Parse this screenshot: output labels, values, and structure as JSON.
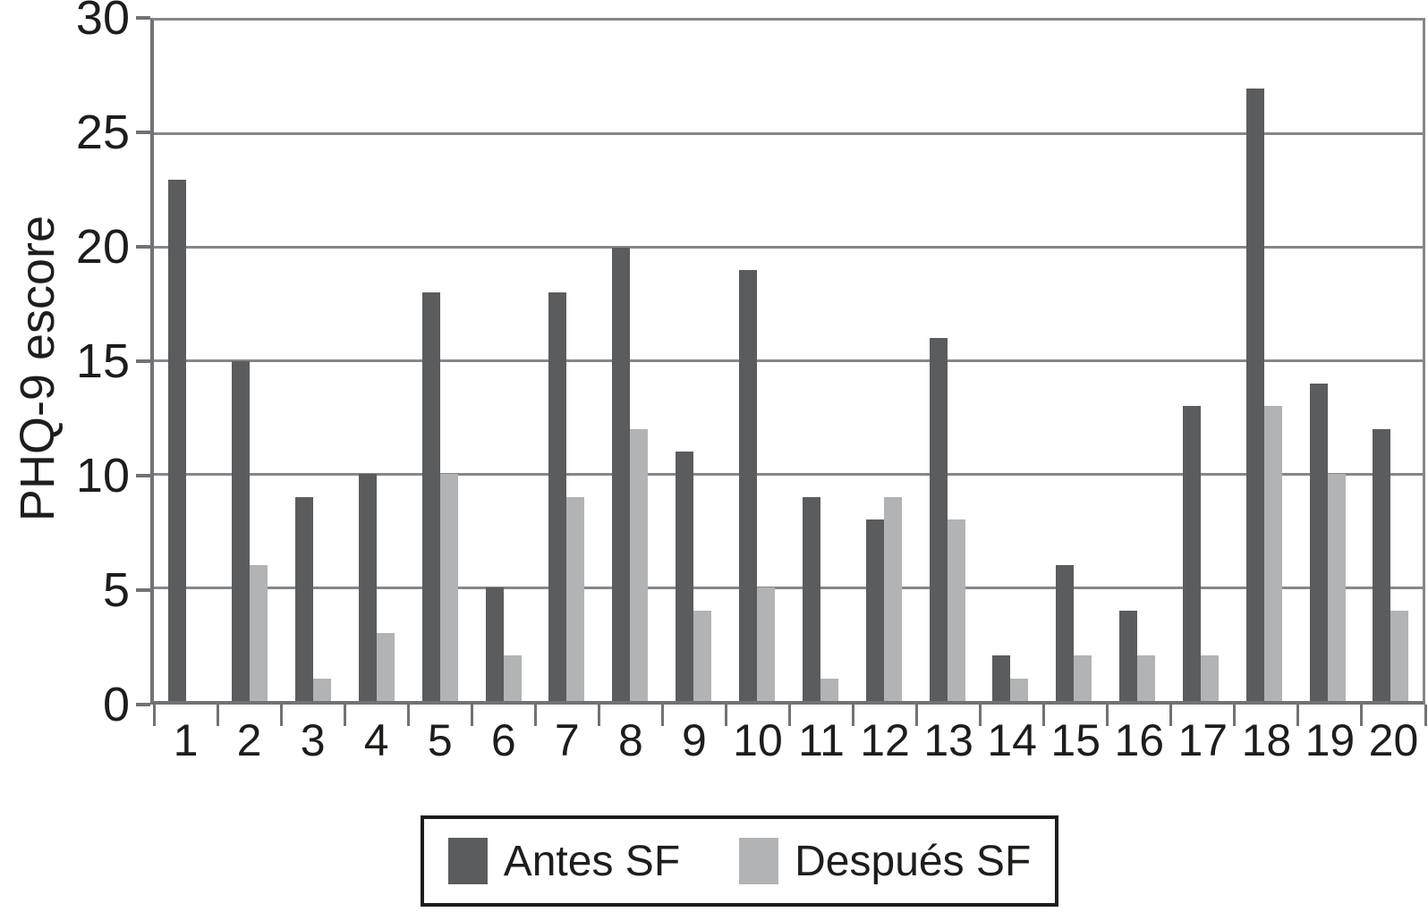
{
  "chart_data": {
    "type": "bar",
    "title": "",
    "ylabel": "PHQ-9 escore",
    "xlabel": "",
    "categories": [
      "1",
      "2",
      "3",
      "4",
      "5",
      "6",
      "7",
      "8",
      "9",
      "10",
      "11",
      "12",
      "13",
      "14",
      "15",
      "16",
      "17",
      "18",
      "19",
      "20"
    ],
    "series": [
      {
        "name": "Antes SF",
        "color": "#5B5C5E",
        "values": [
          23,
          15,
          9,
          10,
          18,
          5,
          18,
          20,
          11,
          19,
          9,
          8,
          16,
          2,
          6,
          4,
          13,
          27,
          14,
          12
        ]
      },
      {
        "name": "Después SF",
        "color": "#B1B3B5",
        "values": [
          0,
          6,
          1,
          3,
          10,
          2,
          9,
          12,
          4,
          5,
          1,
          9,
          8,
          1,
          2,
          2,
          2,
          13,
          10,
          4
        ]
      }
    ],
    "ylim": [
      0,
      30
    ],
    "yticks": [
      0,
      5,
      10,
      15,
      20,
      25,
      30
    ],
    "grid": true,
    "legend_position": "bottom-center",
    "colors": {
      "gridline": "#85878A",
      "axis": "#707275",
      "text": "#1d1d1b",
      "legend_border": "#1d1d1b",
      "background": "#ffffff"
    }
  }
}
